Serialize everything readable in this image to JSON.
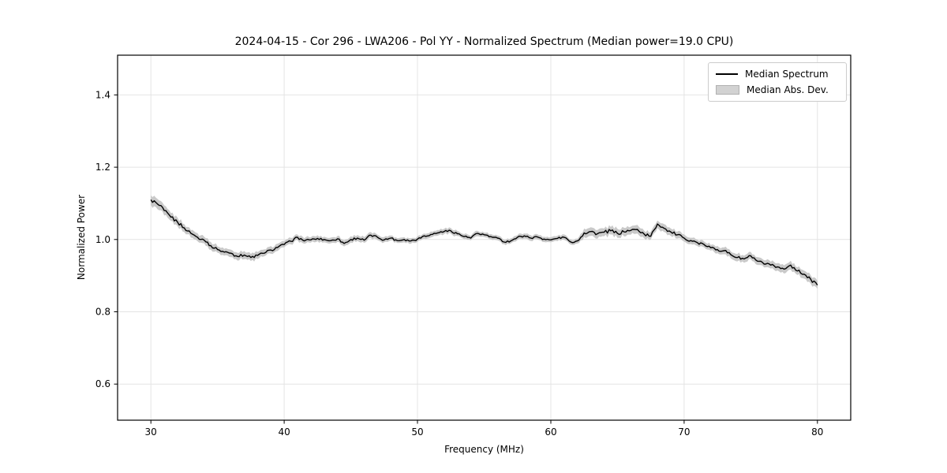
{
  "figure": {
    "background": "#ffffff"
  },
  "chart_data": {
    "type": "line",
    "title": "2024-04-15 - Cor 296 - LWA206 - Pol YY - Normalized Spectrum (Median power=19.0 CPU)",
    "xlabel": "Frequency (MHz)",
    "ylabel": "Normalized Power",
    "xlim": [
      27.5,
      82.5
    ],
    "ylim": [
      0.5,
      1.51
    ],
    "xticks": [
      30,
      40,
      50,
      60,
      70,
      80
    ],
    "xtick_labels": [
      "30",
      "40",
      "50",
      "60",
      "70",
      "80"
    ],
    "yticks": [
      0.6,
      0.8,
      1.0,
      1.2,
      1.4
    ],
    "ytick_labels": [
      "0.6",
      "0.8",
      "1.0",
      "1.2",
      "1.4"
    ],
    "grid": true,
    "grid_color": "#e4e4e4",
    "axis_color": "#000000",
    "line_color": "#000000",
    "band_color": "#c9c9c9",
    "legend": {
      "position": "upper right",
      "entries": [
        {
          "label": "Median Spectrum",
          "type": "line",
          "color": "#000000"
        },
        {
          "label": "Median Abs. Dev.",
          "type": "band",
          "color": "#d2d2d2"
        }
      ]
    },
    "series": [
      {
        "name": "Median Spectrum",
        "type": "line",
        "color": "#000000",
        "x": [
          30.0,
          30.5,
          31.0,
          31.5,
          32.0,
          32.5,
          33.0,
          33.5,
          34.0,
          34.5,
          35.0,
          35.5,
          36.0,
          36.5,
          37.0,
          37.5,
          38.0,
          38.5,
          39.0,
          39.5,
          40.0,
          40.5,
          41.0,
          41.5,
          42.0,
          42.5,
          43.0,
          43.5,
          44.0,
          44.5,
          45.0,
          45.5,
          46.0,
          46.5,
          47.0,
          47.5,
          48.0,
          48.5,
          49.0,
          49.5,
          50.0,
          50.5,
          51.0,
          51.5,
          52.0,
          52.5,
          53.0,
          53.5,
          54.0,
          54.5,
          55.0,
          55.5,
          56.0,
          56.5,
          57.0,
          57.5,
          58.0,
          58.5,
          59.0,
          59.5,
          60.0,
          60.5,
          61.0,
          61.5,
          62.0,
          62.5,
          63.0,
          63.5,
          64.0,
          64.5,
          65.0,
          65.5,
          66.0,
          66.5,
          67.0,
          67.5,
          68.0,
          68.5,
          69.0,
          69.5,
          70.0,
          70.5,
          71.0,
          71.5,
          72.0,
          72.5,
          73.0,
          73.5,
          74.0,
          74.5,
          75.0,
          75.5,
          76.0,
          76.5,
          77.0,
          77.5,
          78.0,
          78.5,
          79.0,
          79.5,
          80.0
        ],
        "y": [
          1.11,
          1.098,
          1.08,
          1.062,
          1.048,
          1.032,
          1.017,
          1.006,
          0.998,
          0.983,
          0.972,
          0.965,
          0.962,
          0.953,
          0.957,
          0.95,
          0.956,
          0.962,
          0.971,
          0.978,
          0.986,
          0.995,
          1.006,
          0.996,
          0.999,
          1.003,
          1.0,
          0.997,
          1.002,
          0.989,
          1.0,
          1.004,
          0.998,
          1.012,
          1.006,
          0.999,
          1.004,
          0.997,
          1.0,
          0.996,
          1.001,
          1.01,
          1.014,
          1.018,
          1.022,
          1.024,
          1.016,
          1.008,
          1.004,
          1.017,
          1.013,
          1.008,
          1.004,
          0.993,
          0.996,
          1.006,
          1.01,
          1.004,
          1.007,
          1.001,
          0.999,
          1.003,
          1.006,
          0.993,
          0.996,
          1.018,
          1.022,
          1.016,
          1.02,
          1.024,
          1.017,
          1.021,
          1.025,
          1.028,
          1.015,
          1.009,
          1.043,
          1.031,
          1.021,
          1.013,
          1.004,
          0.997,
          0.991,
          0.986,
          0.977,
          0.972,
          0.969,
          0.958,
          0.95,
          0.946,
          0.955,
          0.94,
          0.932,
          0.929,
          0.924,
          0.918,
          0.929,
          0.913,
          0.904,
          0.89,
          0.874
        ]
      },
      {
        "name": "Median Abs. Dev.",
        "type": "band",
        "color": "#c9c9c9",
        "band_of": "Median Spectrum",
        "anchor_x": [
          30,
          32,
          34,
          36,
          38,
          40,
          42,
          44,
          46,
          48,
          50,
          52,
          54,
          56,
          58,
          60,
          62,
          62.5,
          64,
          66,
          68,
          70,
          72,
          74,
          76,
          78,
          80
        ],
        "halfwidth": [
          0.014,
          0.011,
          0.01,
          0.01,
          0.01,
          0.009,
          0.008,
          0.008,
          0.008,
          0.007,
          0.007,
          0.008,
          0.007,
          0.007,
          0.007,
          0.007,
          0.007,
          0.012,
          0.012,
          0.011,
          0.011,
          0.009,
          0.009,
          0.01,
          0.01,
          0.011,
          0.012
        ]
      }
    ]
  }
}
